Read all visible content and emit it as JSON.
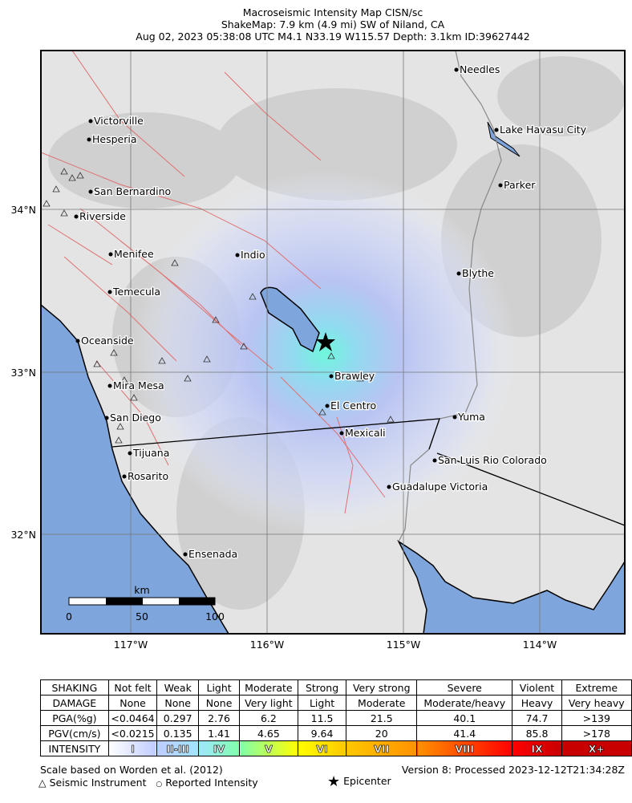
{
  "header": {
    "line1": "Macroseismic Intensity Map CISN/sc",
    "line2": "ShakeMap: 7.9 km (4.9 mi) SW of Niland, CA",
    "line3": "Aug 02, 2023 05:38:08 UTC M4.1 N33.19 W115.57 Depth: 3.1km ID:39627442"
  },
  "map": {
    "lat_labels": [
      "34°N",
      "33°N",
      "32°N"
    ],
    "lon_labels": [
      "117°W",
      "116°W",
      "115°W",
      "114°W"
    ],
    "cities": [
      "Needles",
      "Lake Havasu City",
      "Victorville",
      "Hesperia",
      "San Bernardino",
      "Parker",
      "Riverside",
      "Menifee",
      "Indio",
      "Blythe",
      "Temecula",
      "Oceanside",
      "Brawley",
      "Mira Mesa",
      "El Centro",
      "San Diego",
      "Yuma",
      "Mexicali",
      "Tijuana",
      "San Luis Rio Colorado",
      "Rosarito",
      "Guadalupe Victoria",
      "Ensenada"
    ],
    "scale": {
      "unit": "km",
      "ticks": [
        "0",
        "50",
        "100"
      ]
    },
    "colors": {
      "water": "#7ea6dc",
      "epicenter_shaking": "#7ff5e0",
      "light_shaking": "#b8c6f6",
      "fault": "#e07070"
    }
  },
  "legend": {
    "rows": [
      [
        "SHAKING",
        "Not felt",
        "Weak",
        "Light",
        "Moderate",
        "Strong",
        "Very strong",
        "Severe",
        "Violent",
        "Extreme"
      ],
      [
        "DAMAGE",
        "None",
        "None",
        "None",
        "Very light",
        "Light",
        "Moderate",
        "Moderate/heavy",
        "Heavy",
        "Very heavy"
      ],
      [
        "PGA(%g)",
        "<0.0464",
        "0.297",
        "2.76",
        "6.2",
        "11.5",
        "21.5",
        "40.1",
        "74.7",
        ">139"
      ],
      [
        "PGV(cm/s)",
        "<0.0215",
        "0.135",
        "1.41",
        "4.65",
        "9.64",
        "20",
        "41.4",
        "85.8",
        ">178"
      ]
    ],
    "intensity_label": "INTENSITY",
    "intensity": [
      "I",
      "II-III",
      "IV",
      "V",
      "VI",
      "VII",
      "VIII",
      "IX",
      "X+"
    ],
    "intensity_colors": [
      "#ffffff",
      "#bfccff",
      "#a0e6ff",
      "#80ffaa",
      "#ffff00",
      "#ffc800",
      "#ff9100",
      "#ff0000",
      "#c80000"
    ],
    "scale_note": "Scale based on Worden et al. (2012)",
    "version": "Version 8: Processed 2023-12-12T21:34:28Z",
    "symbols": {
      "instrument": "Seismic Instrument",
      "reported": "Reported Intensity",
      "epicenter": "Epicenter"
    }
  }
}
